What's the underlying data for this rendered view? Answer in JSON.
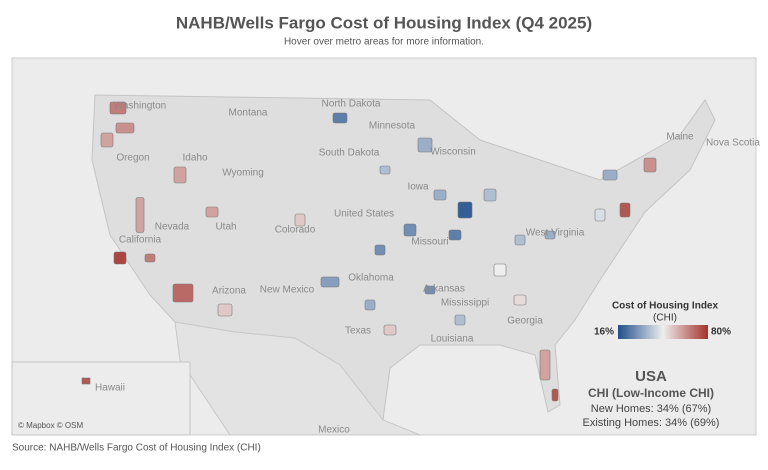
{
  "header": {
    "title": "NAHB/Wells Fargo Cost of Housing Index (Q4 2025)",
    "subtitle": "Hover over metro areas for more information."
  },
  "map": {
    "labels": [
      "Washington",
      "Montana",
      "North Dakota",
      "Minnesota",
      "Oregon",
      "Idaho",
      "South Dakota",
      "Wisconsin",
      "Wyoming",
      "Maine",
      "Nova Scotia",
      "Iowa",
      "United States",
      "Nevada",
      "Utah",
      "Colorado",
      "Missouri",
      "California",
      "West Virginia",
      "Arizona",
      "New Mexico",
      "Oklahoma",
      "Arkansas",
      "Mississippi",
      "Georgia",
      "Texas",
      "Louisiana",
      "Hawaii",
      "Mexico"
    ],
    "attribution": "© Mapbox © OSM"
  },
  "legend": {
    "title": "Cost of Housing Index",
    "subtitle": "(CHI)",
    "min_label": "16%",
    "max_label": "80%",
    "low_color": "#1f4e8c",
    "mid_color": "#eeeeee",
    "high_color": "#a3322b"
  },
  "summary": {
    "region": "USA",
    "heading": "CHI (Low-Income CHI)",
    "lines": [
      "New Homes: 34% (67%)",
      "Existing Homes: 34% (69%)"
    ]
  },
  "footer": {
    "source": "Source: NAHB/Wells Fargo Cost of Housing Index (CHI)"
  }
}
